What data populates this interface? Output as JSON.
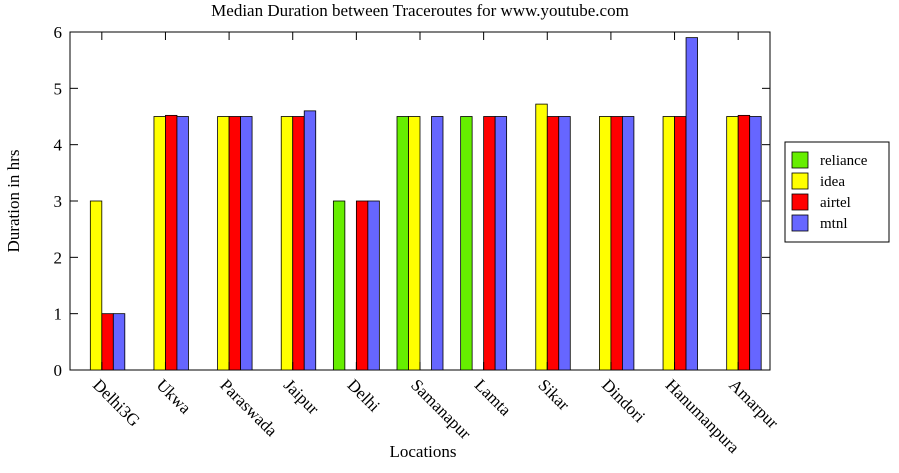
{
  "chart_data": {
    "type": "bar",
    "title": "Median Duration between Traceroutes for www.youtube.com",
    "xlabel": "Locations",
    "ylabel": "Duration in hrs",
    "ylim": [
      0,
      6
    ],
    "yticks": [
      "0",
      "1",
      "2",
      "3",
      "4",
      "5",
      "6"
    ],
    "grid": false,
    "legend_position": "right",
    "categories": [
      "Delhi3G",
      "Ukwa",
      "Paraswada",
      "Jaipur",
      "Delhi",
      "Samanapur",
      "Lamta",
      "Sikar",
      "Dindori",
      "Hanumanpura",
      "Amarpur"
    ],
    "series": [
      {
        "name": "reliance",
        "color": "#66ee00",
        "values": [
          null,
          null,
          null,
          null,
          3.0,
          4.5,
          4.5,
          null,
          null,
          null,
          null
        ]
      },
      {
        "name": "idea",
        "color": "#ffff00",
        "values": [
          3.0,
          4.5,
          4.5,
          4.5,
          null,
          4.5,
          null,
          4.72,
          4.5,
          4.5,
          4.5
        ]
      },
      {
        "name": "airtel",
        "color": "#ff0000",
        "values": [
          1.0,
          4.52,
          4.5,
          4.5,
          3.0,
          null,
          4.5,
          4.5,
          4.5,
          4.5,
          4.52
        ]
      },
      {
        "name": "mtnl",
        "color": "#6666ff",
        "values": [
          1.0,
          4.5,
          4.5,
          4.6,
          3.0,
          4.5,
          4.5,
          4.5,
          4.5,
          5.9,
          4.5
        ]
      }
    ]
  }
}
